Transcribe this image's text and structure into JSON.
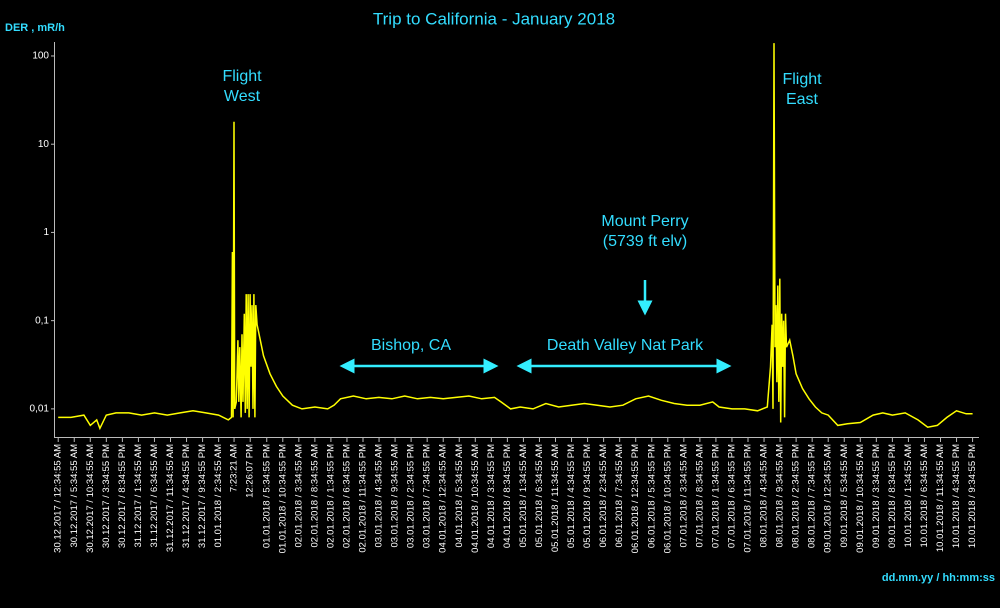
{
  "chart_data": {
    "type": "line",
    "title": "Trip to California - January 2018",
    "y_label": "DER , mR/h",
    "x_label": "dd.mm.yy / hh:mm:ss",
    "log_y": true,
    "grid": false,
    "ylim": [
      0.0048,
      144
    ],
    "yticks": [
      {
        "value": 0.01,
        "label": "0,01"
      },
      {
        "value": 0.1,
        "label": "0,1"
      },
      1,
      10,
      100
    ],
    "xlim": [
      -1,
      287
    ],
    "xticks": [
      {
        "value": 0,
        "label": "30.12.2017 / 12:34:55 AM"
      },
      {
        "value": 5,
        "label": "30.12.2017 / 5:34:55 AM"
      },
      {
        "value": 10,
        "label": "30.12.2017 / 10:34:55 AM"
      },
      {
        "value": 15,
        "label": "30.12.2017 / 3:34:55 PM"
      },
      {
        "value": 20,
        "label": "30.12.2017 / 8:34:55 PM"
      },
      {
        "value": 25,
        "label": "31.12.2017 / 1:34:55 AM"
      },
      {
        "value": 30,
        "label": "31.12.2017 / 6:34:55 AM"
      },
      {
        "value": 35,
        "label": "31.12.2017 / 11:34:55 AM"
      },
      {
        "value": 40,
        "label": "31.12.2017 / 4:34:55 PM"
      },
      {
        "value": 45,
        "label": "31.12.2017 / 9:34:55 PM"
      },
      {
        "value": 50,
        "label": "01.01.2018 / 2:34:55 AM"
      },
      {
        "value": 54.81,
        "label": "7:23:21 AM"
      },
      {
        "value": 59.85,
        "label": "12:26:07 PM"
      },
      {
        "value": 65,
        "label": "01.01.2018 / 5:34:55 PM"
      },
      {
        "value": 70,
        "label": "01.01.2018 / 10:34:55 PM"
      },
      {
        "value": 75,
        "label": "02.01.2018 / 3:34:55 AM"
      },
      {
        "value": 80,
        "label": "02.01.2018 / 8:34:55 AM"
      },
      {
        "value": 85,
        "label": "02.01.2018 / 1:34:55 PM"
      },
      {
        "value": 90,
        "label": "02.01.2018 / 6:34:55 PM"
      },
      {
        "value": 95,
        "label": "02.01.2018 / 11:34:55 PM"
      },
      {
        "value": 100,
        "label": "03.01.2018 / 4:34:55 AM"
      },
      {
        "value": 105,
        "label": "03.01.2018 / 9:34:55 AM"
      },
      {
        "value": 110,
        "label": "03.01.2018 / 2:34:55 PM"
      },
      {
        "value": 115,
        "label": "03.01.2018 / 7:34:55 PM"
      },
      {
        "value": 120,
        "label": "04.01.2018 / 12:34:55 AM"
      },
      {
        "value": 125,
        "label": "04.01.2018 / 5:34:55 AM"
      },
      {
        "value": 130,
        "label": "04.01.2018 / 10:34:55 AM"
      },
      {
        "value": 135,
        "label": "04.01.2018 / 3:34:55 PM"
      },
      {
        "value": 140,
        "label": "04.01.2018 / 8:34:55 PM"
      },
      {
        "value": 145,
        "label": "05.01.2018 / 1:34:55 AM"
      },
      {
        "value": 150,
        "label": "05.01.2018 / 6:34:55 AM"
      },
      {
        "value": 155,
        "label": "05.01.2018 / 11:34:55 AM"
      },
      {
        "value": 160,
        "label": "05.01.2018 / 4:34:55 PM"
      },
      {
        "value": 165,
        "label": "05.01.2018 / 9:34:55 PM"
      },
      {
        "value": 170,
        "label": "06.01.2018 / 2:34:55 AM"
      },
      {
        "value": 175,
        "label": "06.01.2018 / 7:34:55 AM"
      },
      {
        "value": 180,
        "label": "06.01.2018 / 12:34:55 PM"
      },
      {
        "value": 185,
        "label": "06.01.2018 / 5:34:55 PM"
      },
      {
        "value": 190,
        "label": "06.01.2018 / 10:34:55 PM"
      },
      {
        "value": 195,
        "label": "07.01.2018 / 3:34:55 AM"
      },
      {
        "value": 200,
        "label": "07.01.2018 / 8:34:55 AM"
      },
      {
        "value": 205,
        "label": "07.01.2018 / 1:34:55 PM"
      },
      {
        "value": 210,
        "label": "07.01.2018 / 6:34:55 PM"
      },
      {
        "value": 215,
        "label": "07.01.2018 / 11:34:55 PM"
      },
      {
        "value": 220,
        "label": "08.01.2018 / 4:34:55 AM"
      },
      {
        "value": 225,
        "label": "08.01.2018 / 9:34:55 AM"
      },
      {
        "value": 230,
        "label": "08.01.2018 / 2:34:55 PM"
      },
      {
        "value": 235,
        "label": "08.01.2018 / 7:34:55 PM"
      },
      {
        "value": 240,
        "label": "09.01.2018 / 12:34:55 AM"
      },
      {
        "value": 245,
        "label": "09.01.2018 / 5:34:55 AM"
      },
      {
        "value": 250,
        "label": "09.01.2018 / 10:34:55 AM"
      },
      {
        "value": 255,
        "label": "09.01.2018 / 3:34:55 PM"
      },
      {
        "value": 260,
        "label": "09.01.2018 / 8:34:55 PM"
      },
      {
        "value": 265,
        "label": "10.01.2018 / 1:34:55 AM"
      },
      {
        "value": 270,
        "label": "10.01.2018 / 6:34:55 AM"
      },
      {
        "value": 275,
        "label": "10.01.2018 / 11:34:55 AM"
      },
      {
        "value": 280,
        "label": "10.01.2018 / 4:34:55 PM"
      },
      {
        "value": 285,
        "label": "10.01.2018 / 9:34:55 PM"
      }
    ],
    "series": [
      {
        "color": "#ffff00",
        "x": [
          0,
          4,
          8,
          10,
          12,
          13,
          15,
          18,
          22,
          26,
          30,
          34,
          38,
          42,
          46,
          50,
          53,
          54,
          54.3,
          54.5,
          54.8,
          55,
          55.5,
          56,
          56.3,
          56.6,
          57,
          57.3,
          57.6,
          58,
          58.3,
          58.6,
          58.9,
          59.2,
          59.5,
          59.8,
          60.1,
          60.4,
          60.7,
          61,
          61.3,
          61.6,
          62,
          63,
          64,
          66,
          68,
          70,
          73,
          76,
          80,
          84,
          86,
          88,
          92,
          96,
          100,
          104,
          108,
          112,
          116,
          120,
          124,
          128,
          132,
          136,
          138,
          141,
          144,
          148,
          152,
          156,
          160,
          164,
          168,
          172,
          176,
          180,
          184,
          188,
          192,
          196,
          200,
          204,
          206,
          210,
          214,
          218,
          221,
          222,
          222.5,
          222.8,
          223.1,
          223.4,
          223.7,
          224,
          224.3,
          224.6,
          224.9,
          225.2,
          225.5,
          225.8,
          226.1,
          226.4,
          226.7,
          227,
          228,
          229,
          230,
          232,
          234,
          236,
          238,
          240,
          243,
          246,
          250,
          254,
          257,
          260,
          264,
          268,
          271,
          274,
          277,
          280,
          283,
          285
        ],
        "values": [
          0.008,
          0.008,
          0.0085,
          0.0065,
          0.0075,
          0.006,
          0.0085,
          0.009,
          0.009,
          0.0085,
          0.009,
          0.0085,
          0.009,
          0.0095,
          0.009,
          0.0085,
          0.0075,
          0.008,
          0.6,
          0.008,
          18,
          0.01,
          0.012,
          0.06,
          0.012,
          0.05,
          0.008,
          0.07,
          0.012,
          0.12,
          0.009,
          0.2,
          0.01,
          0.2,
          0.008,
          0.2,
          0.03,
          0.15,
          0.01,
          0.2,
          0.008,
          0.15,
          0.09,
          0.06,
          0.04,
          0.025,
          0.018,
          0.014,
          0.011,
          0.01,
          0.0105,
          0.01,
          0.011,
          0.013,
          0.014,
          0.013,
          0.0135,
          0.013,
          0.014,
          0.013,
          0.0135,
          0.013,
          0.0135,
          0.014,
          0.013,
          0.0135,
          0.012,
          0.01,
          0.0105,
          0.01,
          0.0115,
          0.0105,
          0.011,
          0.0115,
          0.011,
          0.0105,
          0.011,
          0.013,
          0.014,
          0.0125,
          0.0115,
          0.011,
          0.011,
          0.012,
          0.0105,
          0.01,
          0.01,
          0.0095,
          0.0105,
          0.03,
          0.09,
          0.01,
          140,
          0.05,
          0.15,
          0.02,
          0.25,
          0.012,
          0.3,
          0.007,
          0.12,
          0.03,
          0.1,
          0.008,
          0.12,
          0.05,
          0.06,
          0.04,
          0.025,
          0.017,
          0.013,
          0.0105,
          0.009,
          0.0085,
          0.0065,
          0.0068,
          0.007,
          0.0085,
          0.009,
          0.0085,
          0.009,
          0.0075,
          0.0062,
          0.0065,
          0.008,
          0.0095,
          0.0088,
          0.0088
        ]
      }
    ],
    "annotations": [
      {
        "lines": [
          "Flight",
          "West"
        ]
      },
      {
        "lines": [
          "Bishop, CA"
        ]
      },
      {
        "lines": [
          "Death Valley Nat Park"
        ]
      },
      {
        "lines": [
          "Mount Perry",
          "(5739 ft elv)"
        ]
      },
      {
        "lines": [
          "Flight",
          "East"
        ]
      }
    ]
  }
}
